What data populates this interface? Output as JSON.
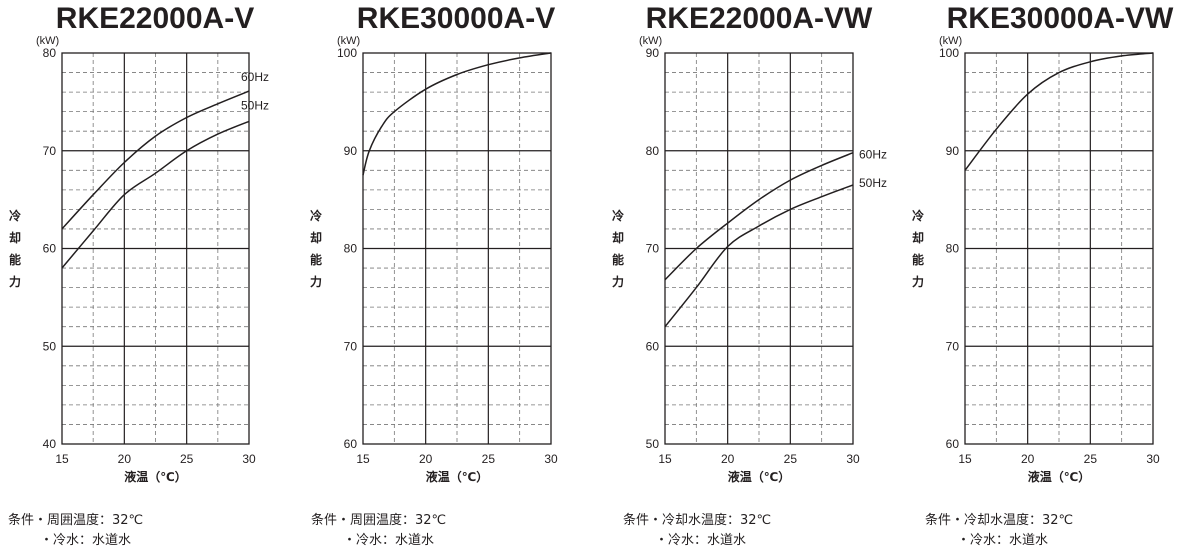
{
  "chart_data": [
    {
      "type": "line",
      "title": "RKE22000A-V",
      "unit": "(kW)",
      "ylabel": "冷却能力",
      "xlabel": "液温（℃）",
      "xlim": [
        15,
        30
      ],
      "ylim": [
        40,
        80
      ],
      "xticks": [
        15,
        20,
        25,
        30
      ],
      "yticks": [
        40,
        50,
        60,
        70,
        80
      ],
      "grid": true,
      "series": [
        {
          "name": "60Hz",
          "x": [
            15,
            17.5,
            20,
            22.5,
            25,
            27.5,
            30
          ],
          "y": [
            62,
            65.5,
            68.8,
            71.5,
            73.4,
            74.8,
            76.1
          ]
        },
        {
          "name": "50Hz",
          "x": [
            15,
            17.5,
            20,
            22.5,
            25,
            27.5,
            30
          ],
          "y": [
            58,
            61.8,
            65.5,
            67.7,
            70.0,
            71.7,
            73.0
          ]
        }
      ],
      "notes": [
        "条件・周囲温度：32℃",
        "・冷水：水道水"
      ]
    },
    {
      "type": "line",
      "title": "RKE30000A-V",
      "unit": "(kW)",
      "ylabel": "冷却能力",
      "xlabel": "液温（℃）",
      "xlim": [
        15,
        30
      ],
      "ylim": [
        60,
        100
      ],
      "xticks": [
        15,
        20,
        25,
        30
      ],
      "yticks": [
        60,
        70,
        80,
        90,
        100
      ],
      "grid": true,
      "series": [
        {
          "name": "",
          "x": [
            15,
            15.5,
            16.5,
            17.5,
            20,
            22.5,
            25,
            27.5,
            30
          ],
          "y": [
            87.5,
            90.0,
            92.5,
            94.0,
            96.3,
            97.8,
            98.8,
            99.5,
            100.0
          ]
        }
      ],
      "notes": [
        "条件・周囲温度：32℃",
        "・冷水：水道水"
      ]
    },
    {
      "type": "line",
      "title": "RKE22000A-VW",
      "unit": "(kW)",
      "ylabel": "冷却能力",
      "xlabel": "液温（℃）",
      "xlim": [
        15,
        30
      ],
      "ylim": [
        50,
        90
      ],
      "xticks": [
        15,
        20,
        25,
        30
      ],
      "yticks": [
        50,
        60,
        70,
        80,
        90
      ],
      "grid": true,
      "series": [
        {
          "name": "60Hz",
          "x": [
            15,
            17.5,
            20,
            22.5,
            25,
            27.5,
            30
          ],
          "y": [
            66.8,
            70.0,
            72.6,
            75.0,
            77.0,
            78.5,
            79.8
          ]
        },
        {
          "name": "50Hz",
          "x": [
            15,
            17.5,
            20,
            22.5,
            25,
            27.5,
            30
          ],
          "y": [
            62.0,
            66.0,
            70.2,
            72.3,
            74.0,
            75.3,
            76.5
          ]
        }
      ],
      "notes": [
        "条件・冷却水温度：32℃",
        "・冷水：水道水"
      ]
    },
    {
      "type": "line",
      "title": "RKE30000A-VW",
      "unit": "(kW)",
      "ylabel": "冷却能力",
      "xlabel": "液温（℃）",
      "xlim": [
        15,
        30
      ],
      "ylim": [
        60,
        100
      ],
      "xticks": [
        15,
        20,
        25,
        30
      ],
      "yticks": [
        60,
        70,
        80,
        90,
        100
      ],
      "grid": true,
      "series": [
        {
          "name": "",
          "x": [
            15,
            17.5,
            20,
            22.5,
            25,
            27.5,
            30
          ],
          "y": [
            88.0,
            92.2,
            95.8,
            98.0,
            99.1,
            99.7,
            100.0
          ]
        }
      ],
      "notes": [
        "条件・冷却水温度：32℃",
        "・冷水：水道水"
      ]
    }
  ]
}
